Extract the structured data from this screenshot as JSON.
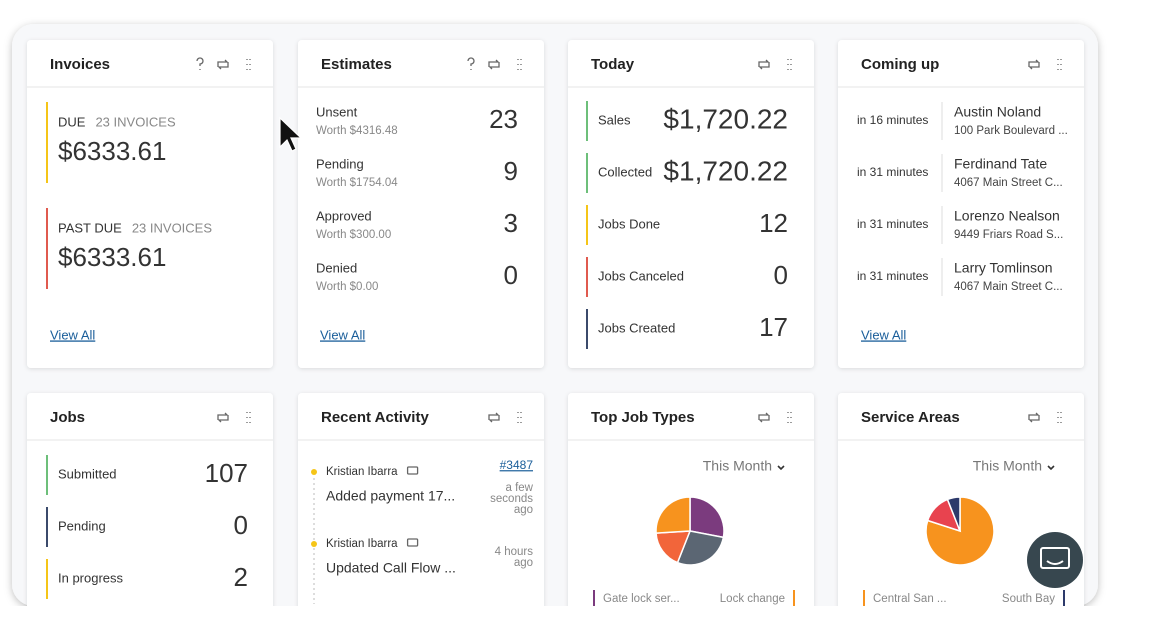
{
  "invoices": {
    "title": "Invoices",
    "due": {
      "label": "DUE",
      "count": "23 INVOICES",
      "amount": "$6333.61"
    },
    "past_due": {
      "label": "PAST DUE",
      "count": "23 INVOICES",
      "amount": "$6333.61"
    },
    "link": "View All"
  },
  "estimates": {
    "title": "Estimates",
    "rows": [
      {
        "label": "Unsent",
        "worth": "Worth $4316.48",
        "value": 23
      },
      {
        "label": "Pending",
        "worth": "Worth $1754.04",
        "value": 9
      },
      {
        "label": "Approved",
        "worth": "Worth $300.00",
        "value": 3
      },
      {
        "label": "Denied",
        "worth": "Worth $0.00",
        "value": 0
      }
    ],
    "link": "View All"
  },
  "today": {
    "title": "Today",
    "rows": [
      {
        "label": "Sales",
        "value": "$1,720.22"
      },
      {
        "label": "Collected",
        "value": "$1,720.22"
      },
      {
        "label": "Jobs Done",
        "value": 12
      },
      {
        "label": "Jobs Canceled",
        "value": 0
      },
      {
        "label": "Jobs Created",
        "value": 17
      }
    ]
  },
  "coming_up": {
    "title": "Coming up",
    "rows": [
      {
        "time": "in 16 minutes",
        "name": "Austin Noland",
        "address": "100 Park Boulevard ..."
      },
      {
        "time": "in 31 minutes",
        "name": "Ferdinand Tate",
        "address": "4067 Main Street C..."
      },
      {
        "time": "in 31 minutes",
        "name": "Lorenzo Nealson",
        "address": "9449 Friars Road S..."
      },
      {
        "time": "in 31 minutes",
        "name": "Larry Tomlinson",
        "address": "4067 Main Street C..."
      }
    ],
    "link": "View All"
  },
  "jobs": {
    "title": "Jobs",
    "rows": [
      {
        "label": "Submitted",
        "value": 107
      },
      {
        "label": "Pending",
        "value": 0
      },
      {
        "label": "In progress",
        "value": 2
      }
    ]
  },
  "recent_activity": {
    "title": "Recent Activity",
    "items": [
      {
        "user": "Kristian Ibarra",
        "action": "Added payment 17...",
        "ref": "#3487",
        "time": [
          "a few",
          "seconds",
          "ago"
        ]
      },
      {
        "user": "Kristian Ibarra",
        "action": "Updated Call Flow ...",
        "time": [
          "4 hours",
          "ago"
        ]
      }
    ]
  },
  "top_job_types": {
    "title": "Top Job Types",
    "filter": "This Month",
    "chart": {
      "type": "pie",
      "values": [
        28,
        28,
        18,
        26
      ],
      "colors": [
        "#7b3b7e",
        "#5b6673",
        "#f2653a",
        "#f7931e"
      ]
    },
    "legend": [
      "Gate lock ser...",
      "Lock change"
    ]
  },
  "service_areas": {
    "title": "Service Areas",
    "filter": "This Month",
    "chart": {
      "type": "pie",
      "values": [
        80,
        14,
        6
      ],
      "colors": [
        "#f7931e",
        "#e8434f",
        "#2d3a6b"
      ]
    },
    "legend": [
      "Central San ...",
      "South Bay"
    ]
  }
}
